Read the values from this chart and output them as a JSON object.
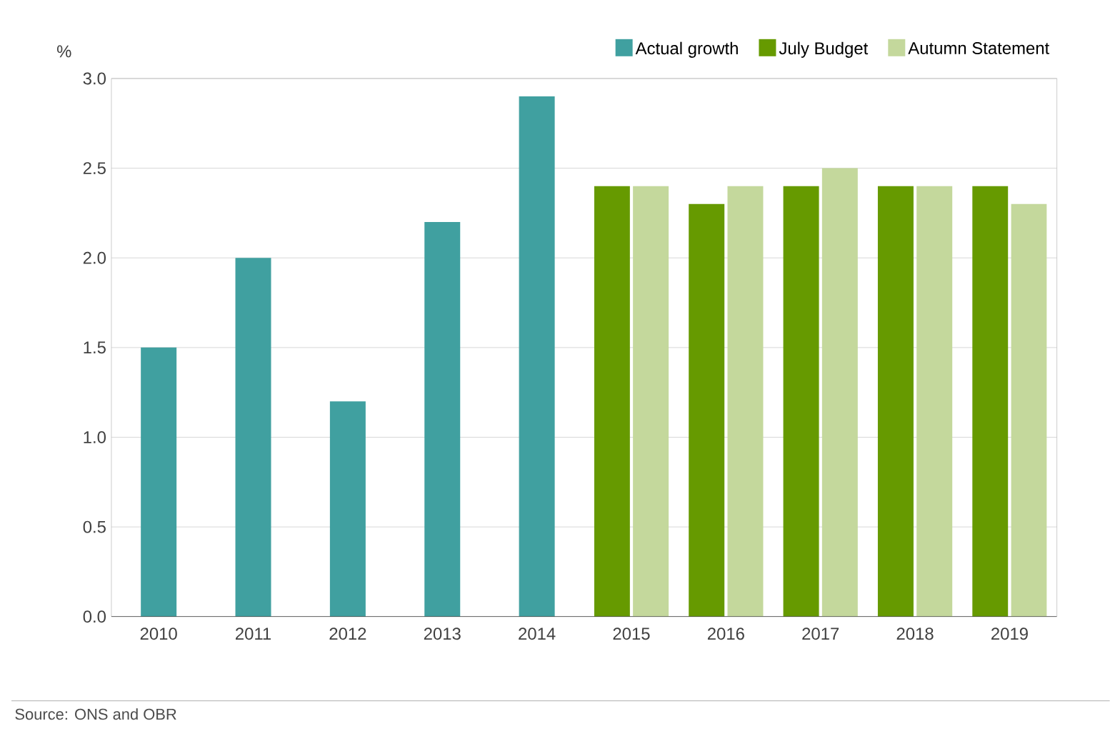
{
  "chart_data": {
    "type": "bar",
    "ylabel": "%",
    "categories": [
      "2010",
      "2011",
      "2012",
      "2013",
      "2014",
      "2015",
      "2016",
      "2017",
      "2018",
      "2019"
    ],
    "series": [
      {
        "name": "Actual growth",
        "color": "#40a0a0",
        "values": [
          1.5,
          2.0,
          1.2,
          2.2,
          2.9,
          null,
          null,
          null,
          null,
          null
        ]
      },
      {
        "name": "July Budget",
        "color": "#669a00",
        "values": [
          null,
          null,
          null,
          null,
          null,
          2.4,
          2.3,
          2.4,
          2.4,
          2.4
        ]
      },
      {
        "name": "Autumn Statement",
        "color": "#c4d89c",
        "values": [
          null,
          null,
          null,
          null,
          null,
          2.4,
          2.4,
          2.5,
          2.4,
          2.3
        ]
      }
    ],
    "ylim": [
      0,
      3.0
    ],
    "yticks": [
      {
        "value": 0,
        "label": "0.0"
      },
      {
        "value": 0.5,
        "label": "0.5"
      },
      {
        "value": 1.0,
        "label": "1.0"
      },
      {
        "value": 1.5,
        "label": "1.5"
      },
      {
        "value": 2.0,
        "label": "2.0"
      },
      {
        "value": 2.5,
        "label": "2.5"
      },
      {
        "value": 3.0,
        "label": "3.0"
      }
    ],
    "grid": "y",
    "legend": "top right",
    "annotations": [
      "Source: ONS and OBR"
    ]
  }
}
